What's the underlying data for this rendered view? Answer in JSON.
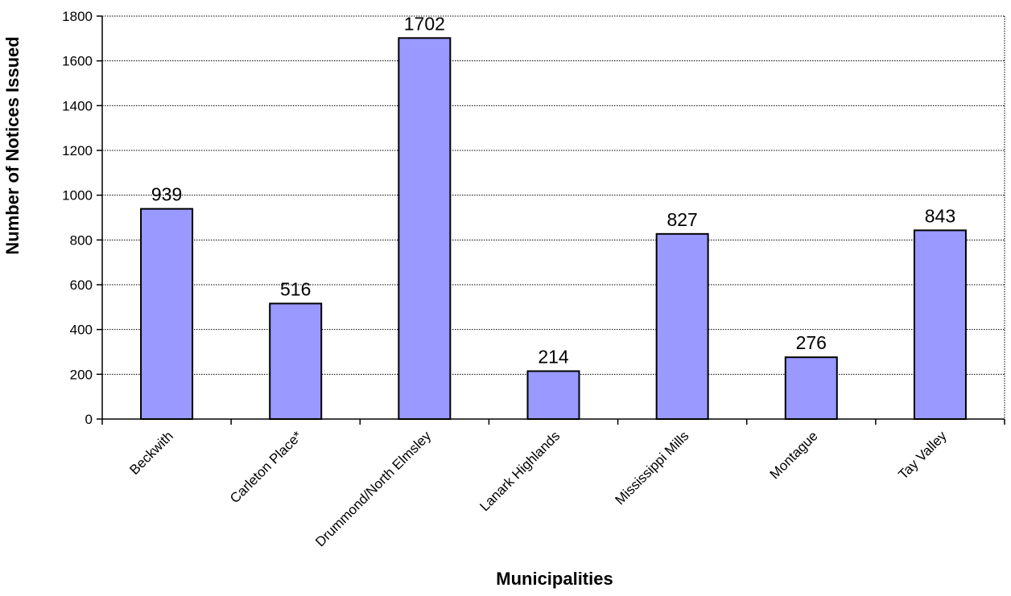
{
  "chart_data": {
    "type": "bar",
    "title": "",
    "xlabel": "Municipalities",
    "ylabel": "Number of Notices Issued",
    "categories": [
      "Beckwith",
      "Carleton Place*",
      "Drummond/North Elmsley",
      "Lanark Highlands",
      "Mississippi Mills",
      "Montague",
      "Tay Valley"
    ],
    "values": [
      939,
      516,
      1702,
      214,
      827,
      276,
      843
    ],
    "data_labels": [
      "939",
      "516",
      "1702",
      "214",
      "827",
      "276",
      "843"
    ],
    "ylim": [
      0,
      1800
    ],
    "yticks": [
      "0",
      "200",
      "400",
      "600",
      "800",
      "1000",
      "1200",
      "1400",
      "1600",
      "1800"
    ],
    "grid": true,
    "legend": "none",
    "bar_color": "#9999ff"
  }
}
